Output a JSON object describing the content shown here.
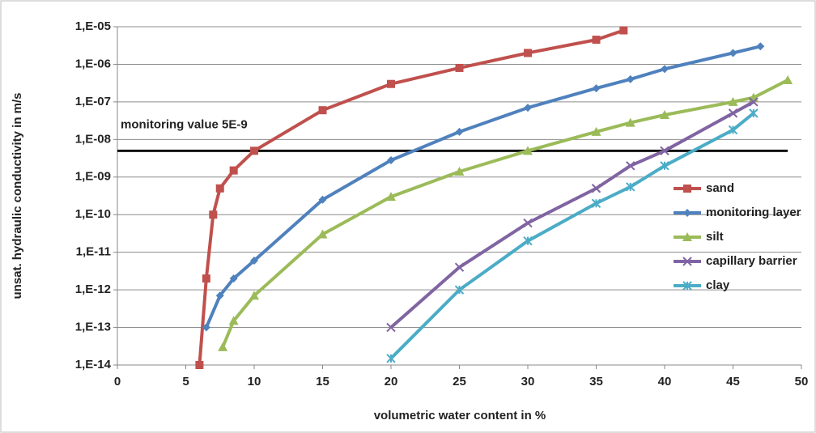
{
  "chart_data": {
    "type": "line",
    "y_label": "unsat. hydraulic conductivity in m/s",
    "x_label": "volumetric water content in %",
    "log_y": true,
    "grid": true,
    "legend": "right",
    "xlim": [
      0,
      50
    ],
    "xticks": [
      0,
      5,
      10,
      15,
      20,
      25,
      30,
      35,
      40,
      45,
      50
    ],
    "ylim": [
      1e-14,
      1e-05
    ],
    "yticks": [
      {
        "value": 1e-14,
        "label": "1,E-14"
      },
      {
        "value": 1e-13,
        "label": "1,E-13"
      },
      {
        "value": 1e-12,
        "label": "1,E-12"
      },
      {
        "value": 1e-11,
        "label": "1,E-11"
      },
      {
        "value": 1e-10,
        "label": "1,E-10"
      },
      {
        "value": 1e-09,
        "label": "1,E-09"
      },
      {
        "value": 1e-08,
        "label": "1,E-08"
      },
      {
        "value": 1e-07,
        "label": "1,E-07"
      },
      {
        "value": 1e-06,
        "label": "1,E-06"
      },
      {
        "value": 1e-05,
        "label": "1,E-05"
      }
    ],
    "reference_line": {
      "value": 5e-09,
      "label": "monitoring value 5E-9",
      "color": "#111111"
    },
    "series": [
      {
        "name": "sand",
        "color": "#c0504d",
        "marker": "square",
        "x": [
          6,
          6.5,
          7,
          7.5,
          8.5,
          10,
          15,
          20,
          25,
          30,
          35,
          37
        ],
        "values": [
          1e-14,
          2e-12,
          1e-10,
          5e-10,
          1.5e-09,
          5e-09,
          6e-08,
          3e-07,
          8e-07,
          2e-06,
          4.5e-06,
          8e-06
        ]
      },
      {
        "name": "monitoring layer",
        "color": "#4f81bd",
        "marker": "diamond",
        "x": [
          6.5,
          7.5,
          8.5,
          10,
          15,
          20,
          25,
          30,
          35,
          37.5,
          40,
          45,
          47
        ],
        "values": [
          1e-13,
          7e-13,
          2e-12,
          6e-12,
          2.5e-10,
          2.8e-09,
          1.6e-08,
          7e-08,
          2.3e-07,
          4e-07,
          7.5e-07,
          2e-06,
          3e-06
        ]
      },
      {
        "name": "silt",
        "color": "#9bbb59",
        "marker": "triangle",
        "x": [
          7.7,
          8.5,
          10,
          15,
          20,
          25,
          30,
          35,
          37.5,
          40,
          45,
          46.5,
          49
        ],
        "values": [
          3e-14,
          1.5e-13,
          7e-13,
          3e-11,
          3e-10,
          1.4e-09,
          5e-09,
          1.6e-08,
          2.8e-08,
          4.5e-08,
          1e-07,
          1.3e-07,
          3.8e-07
        ]
      },
      {
        "name": "capillary barrier",
        "color": "#8064a2",
        "marker": "x",
        "x": [
          20,
          25,
          30,
          35,
          37.5,
          40,
          45,
          46.5
        ],
        "values": [
          1e-13,
          4e-12,
          6e-11,
          5e-10,
          2e-09,
          5e-09,
          5e-08,
          1e-07
        ]
      },
      {
        "name": "clay",
        "color": "#4bacc6",
        "marker": "star",
        "x": [
          20,
          25,
          30,
          35,
          37.5,
          40,
          45,
          46.5
        ],
        "values": [
          1.5e-14,
          1e-12,
          2e-11,
          2e-10,
          5.5e-10,
          2e-09,
          1.8e-08,
          5e-08
        ]
      }
    ]
  }
}
